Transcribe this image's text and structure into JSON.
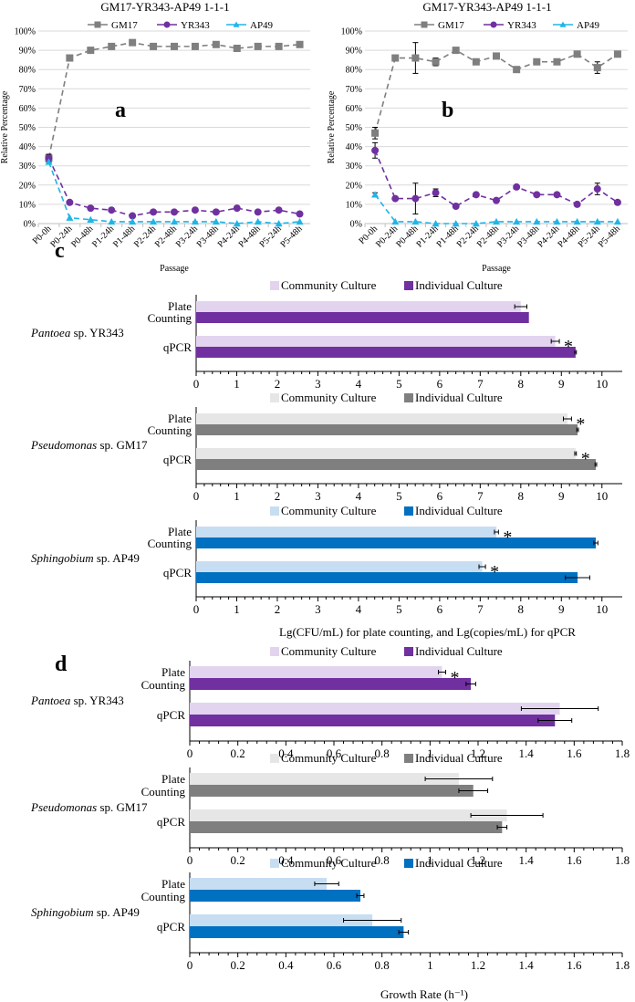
{
  "colors": {
    "gm17": "#7f7f7f",
    "yr343": "#7030a0",
    "ap49": "#1fb5e8",
    "yr343_light": "#e2d4ef",
    "yr343_dark": "#7030a0",
    "gm17_light": "#e6e6e6",
    "gm17_dark": "#7f7f7f",
    "ap49_light": "#c7ddf2",
    "ap49_dark": "#0070c0"
  },
  "chart_data": [
    {
      "id": "a",
      "type": "line",
      "title": "GM17-YR343-AP49 1-1-1",
      "panel_label": "a",
      "xlabel": "Passage",
      "ylabel": "Relative Percentage",
      "ylim": [
        0,
        100
      ],
      "yticks": [
        "0%",
        "10%",
        "20%",
        "30%",
        "40%",
        "50%",
        "60%",
        "70%",
        "80%",
        "90%",
        "100%"
      ],
      "categories": [
        "P0-0h",
        "P0-24h",
        "P0-48h",
        "P1-24h",
        "P1-48h",
        "P2-24h",
        "P2-48h",
        "P3-24h",
        "P3-48h",
        "P4-24h",
        "P4-48h",
        "P5-24h",
        "P5-48h"
      ],
      "series": [
        {
          "name": "GM17",
          "marker": "square",
          "color_key": "gm17",
          "values": [
            34,
            86,
            90,
            92,
            94,
            92,
            92,
            92,
            93,
            91,
            92,
            92,
            93
          ],
          "errors": [
            0,
            0,
            0,
            0,
            0,
            0,
            0,
            0,
            0,
            0,
            0,
            0,
            0
          ]
        },
        {
          "name": "YR343",
          "marker": "circle",
          "color_key": "yr343",
          "values": [
            34,
            11,
            8,
            7,
            4,
            6,
            6,
            7,
            6,
            8,
            6,
            7,
            5
          ],
          "errors": [
            2,
            0,
            0,
            0,
            0,
            0,
            0,
            0,
            0,
            0,
            0,
            0,
            0
          ]
        },
        {
          "name": "AP49",
          "marker": "triangle",
          "color_key": "ap49",
          "values": [
            32,
            3,
            2,
            1,
            1,
            1,
            1,
            1,
            1,
            0,
            1,
            0,
            1
          ],
          "errors": [
            0,
            0,
            0,
            0,
            0,
            0,
            0,
            0,
            0,
            0,
            0,
            0,
            0
          ]
        }
      ]
    },
    {
      "id": "b",
      "type": "line",
      "title": "GM17-YR343-AP49 1-1-1",
      "panel_label": "b",
      "xlabel": "Passage",
      "ylabel": "Relative Percentage",
      "ylim": [
        0,
        100
      ],
      "yticks": [
        "0%",
        "10%",
        "20%",
        "30%",
        "40%",
        "50%",
        "60%",
        "70%",
        "80%",
        "90%",
        "100%"
      ],
      "categories": [
        "P0-0h",
        "P0-24h",
        "P0-48h",
        "P1-24h",
        "P1-48h",
        "P2-24h",
        "P2-48h",
        "P3-24h",
        "P3-48h",
        "P4-24h",
        "P4-48h",
        "P5-24h",
        "P5-48h"
      ],
      "series": [
        {
          "name": "GM17",
          "marker": "square",
          "color_key": "gm17",
          "values": [
            47,
            86,
            86,
            84,
            90,
            84,
            87,
            80,
            84,
            84,
            88,
            81,
            88
          ],
          "errors": [
            3,
            0,
            8,
            2,
            0,
            0,
            0,
            0,
            0,
            0,
            0,
            3,
            0
          ]
        },
        {
          "name": "YR343",
          "marker": "circle",
          "color_key": "yr343",
          "values": [
            38,
            13,
            13,
            16,
            9,
            15,
            12,
            19,
            15,
            15,
            10,
            18,
            11
          ],
          "errors": [
            4,
            0,
            8,
            2,
            0,
            0,
            0,
            0,
            0,
            0,
            0,
            3,
            0
          ]
        },
        {
          "name": "AP49",
          "marker": "triangle",
          "color_key": "ap49",
          "values": [
            15,
            1,
            1,
            0,
            0,
            0,
            1,
            1,
            1,
            1,
            1,
            1,
            1
          ],
          "errors": [
            1,
            0,
            0,
            0,
            0,
            0,
            0,
            0,
            0,
            0,
            0,
            0,
            0
          ]
        }
      ]
    },
    {
      "id": "c",
      "type": "bar",
      "orientation": "horizontal",
      "panel_label": "c",
      "xlabel": "Lg(CFU/mL) for plate counting, and Lg(copies/mL) for qPCR",
      "xlim": [
        0,
        10.5
      ],
      "xticks": [
        "0",
        "1",
        "2",
        "3",
        "4",
        "5",
        "6",
        "7",
        "8",
        "9",
        "10"
      ],
      "legend": [
        "Community Culture",
        "Individual Culture"
      ],
      "groups": [
        {
          "organism": "Pantoea",
          "suffix": " sp. YR343",
          "color": "yr343",
          "rows": [
            {
              "label_lines": [
                "Plate",
                "Counting"
              ],
              "community": 8.0,
              "community_err": 0.15,
              "individual": 8.2,
              "individual_err": 0.0,
              "star": false
            },
            {
              "label_lines": [
                "qPCR"
              ],
              "community": 8.85,
              "community_err": 0.1,
              "individual": 9.35,
              "individual_err": 0.02,
              "star": true
            }
          ]
        },
        {
          "organism": "Pseudomonas",
          "suffix": " sp. GM17",
          "color": "gm17",
          "rows": [
            {
              "label_lines": [
                "Plate",
                "Counting"
              ],
              "community": 9.15,
              "community_err": 0.1,
              "individual": 9.4,
              "individual_err": 0.02,
              "star": true
            },
            {
              "label_lines": [
                "qPCR"
              ],
              "community": 9.35,
              "community_err": 0.02,
              "individual": 9.85,
              "individual_err": 0.02,
              "star": true
            }
          ]
        },
        {
          "organism": "Sphingobium",
          "suffix": " sp. AP49",
          "color": "ap49",
          "rows": [
            {
              "label_lines": [
                "Plate",
                "Counting"
              ],
              "community": 7.4,
              "community_err": 0.05,
              "individual": 9.85,
              "individual_err": 0.05,
              "star": true
            },
            {
              "label_lines": [
                "qPCR"
              ],
              "community": 7.05,
              "community_err": 0.08,
              "individual": 9.4,
              "individual_err": 0.3,
              "star": true
            }
          ]
        }
      ]
    },
    {
      "id": "d",
      "type": "bar",
      "orientation": "horizontal",
      "panel_label": "d",
      "xlabel": "Growth Rate (h⁻¹)",
      "xlim": [
        0,
        1.8
      ],
      "xticks": [
        "0",
        "0.2",
        "0.4",
        "0.6",
        "0.8",
        "1",
        "1.2",
        "1.4",
        "1.6",
        "1.8"
      ],
      "legend": [
        "Community Culture",
        "Individual Culture"
      ],
      "groups": [
        {
          "organism": "Pantoea",
          "suffix": " sp. YR343",
          "color": "yr343",
          "rows": [
            {
              "label_lines": [
                "Plate",
                "Counting"
              ],
              "community": 1.05,
              "community_err": 0.015,
              "individual": 1.17,
              "individual_err": 0.02,
              "star": true
            },
            {
              "label_lines": [
                "qPCR"
              ],
              "community": 1.54,
              "community_err": 0.16,
              "individual": 1.52,
              "individual_err": 0.07,
              "star": false
            }
          ]
        },
        {
          "organism": "Pseudomonas",
          "suffix": " sp. GM17",
          "color": "gm17",
          "rows": [
            {
              "label_lines": [
                "Plate",
                "Counting"
              ],
              "community": 1.12,
              "community_err": 0.14,
              "individual": 1.18,
              "individual_err": 0.06,
              "star": false
            },
            {
              "label_lines": [
                "qPCR"
              ],
              "community": 1.32,
              "community_err": 0.15,
              "individual": 1.3,
              "individual_err": 0.02,
              "star": false
            }
          ]
        },
        {
          "organism": "Sphingobium",
          "suffix": " sp. AP49",
          "color": "ap49",
          "rows": [
            {
              "label_lines": [
                "Plate",
                "Counting"
              ],
              "community": 0.57,
              "community_err": 0.05,
              "individual": 0.71,
              "individual_err": 0.015,
              "star": false
            },
            {
              "label_lines": [
                "qPCR"
              ],
              "community": 0.76,
              "community_err": 0.12,
              "individual": 0.89,
              "individual_err": 0.02,
              "star": false
            }
          ]
        }
      ]
    }
  ]
}
